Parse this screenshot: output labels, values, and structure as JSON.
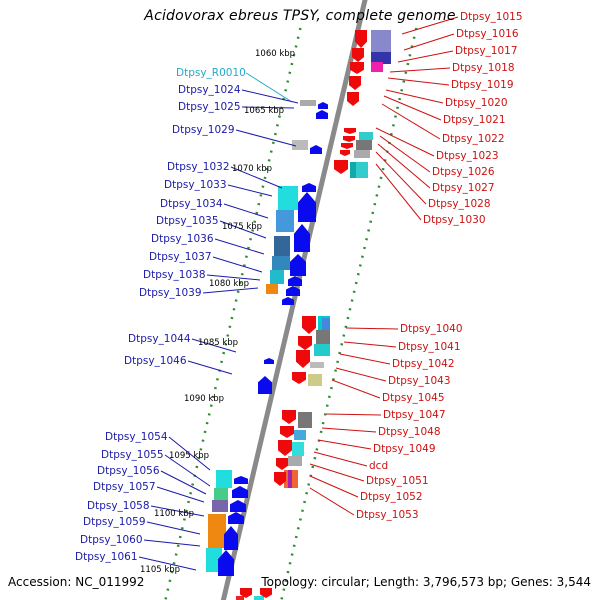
{
  "title": "Acidovorax ebreus TPSY, complete genome",
  "footer": {
    "accession": "Accession: NC_011992",
    "topology": "Topology: circular; Length: 3,796,573 bp; Genes: 3,544"
  },
  "colors": {
    "backbone": "#8a8a8a",
    "ticks": "#2e8b2e",
    "forward_label": "#1a1aaa",
    "reverse_label": "#cc1111",
    "rna_label": "#22aacc",
    "forward_arrow": "#0a0aee",
    "reverse_arrow": "#ee0a0a"
  },
  "kbp_labels": [
    "1060 kbp",
    "1065 kbp",
    "1070 kbp",
    "1075 kbp",
    "1080 kbp",
    "1085 kbp",
    "1090 kbp",
    "1095 kbp",
    "1100 kbp",
    "1105 kbp"
  ],
  "left_labels": [
    {
      "text": "Dtpsy_R0010",
      "type": "rna"
    },
    {
      "text": "Dtpsy_1024"
    },
    {
      "text": "Dtpsy_1025"
    },
    {
      "text": "Dtpsy_1029"
    },
    {
      "text": "Dtpsy_1032"
    },
    {
      "text": "Dtpsy_1033"
    },
    {
      "text": "Dtpsy_1034"
    },
    {
      "text": "Dtpsy_1035"
    },
    {
      "text": "Dtpsy_1036"
    },
    {
      "text": "Dtpsy_1037"
    },
    {
      "text": "Dtpsy_1038"
    },
    {
      "text": "Dtpsy_1039"
    },
    {
      "text": "Dtpsy_1044"
    },
    {
      "text": "Dtpsy_1046"
    },
    {
      "text": "Dtpsy_1054"
    },
    {
      "text": "Dtpsy_1055"
    },
    {
      "text": "Dtpsy_1056"
    },
    {
      "text": "Dtpsy_1057"
    },
    {
      "text": "Dtpsy_1058"
    },
    {
      "text": "Dtpsy_1059"
    },
    {
      "text": "Dtpsy_1060"
    },
    {
      "text": "Dtpsy_1061"
    }
  ],
  "right_labels": [
    {
      "text": "Dtpsy_1015"
    },
    {
      "text": "Dtpsy_1016"
    },
    {
      "text": "Dtpsy_1017"
    },
    {
      "text": "Dtpsy_1018"
    },
    {
      "text": "Dtpsy_1019"
    },
    {
      "text": "Dtpsy_1020"
    },
    {
      "text": "Dtpsy_1021"
    },
    {
      "text": "Dtpsy_1022"
    },
    {
      "text": "Dtpsy_1023"
    },
    {
      "text": "Dtpsy_1026"
    },
    {
      "text": "Dtpsy_1027"
    },
    {
      "text": "Dtpsy_1028"
    },
    {
      "text": "Dtpsy_1030"
    },
    {
      "text": "Dtpsy_1040"
    },
    {
      "text": "Dtpsy_1041"
    },
    {
      "text": "Dtpsy_1042"
    },
    {
      "text": "Dtpsy_1043"
    },
    {
      "text": "Dtpsy_1045"
    },
    {
      "text": "Dtpsy_1047"
    },
    {
      "text": "Dtpsy_1048"
    },
    {
      "text": "Dtpsy_1049"
    },
    {
      "text": "dcd"
    },
    {
      "text": "Dtpsy_1051"
    },
    {
      "text": "Dtpsy_1052"
    },
    {
      "text": "Dtpsy_1053"
    }
  ]
}
